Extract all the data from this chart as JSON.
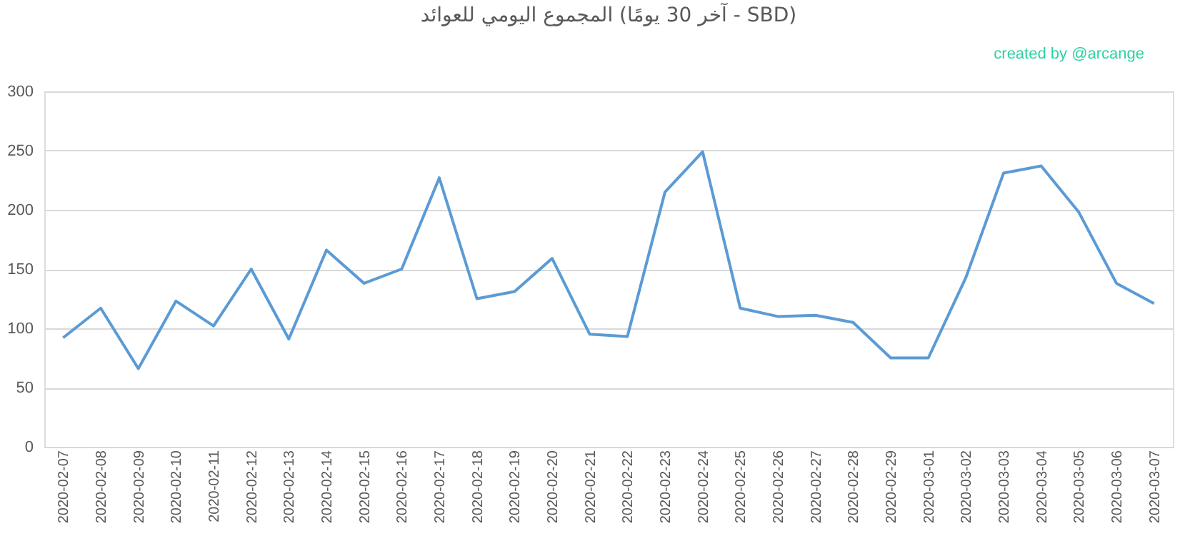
{
  "chart_data": {
    "type": "line",
    "title": "المجموع اليومي للعوائد (آخر 30 يومًا - SBD)",
    "annotations": [
      "created by @arcange"
    ],
    "categories": [
      "2020-02-07",
      "2020-02-08",
      "2020-02-09",
      "2020-02-10",
      "2020-02-11",
      "2020-02-12",
      "2020-02-13",
      "2020-02-14",
      "2020-02-15",
      "2020-02-16",
      "2020-02-17",
      "2020-02-18",
      "2020-02-19",
      "2020-02-20",
      "2020-02-21",
      "2020-02-22",
      "2020-02-23",
      "2020-02-24",
      "2020-02-25",
      "2020-02-26",
      "2020-02-27",
      "2020-02-28",
      "2020-02-29",
      "2020-03-01",
      "2020-03-02",
      "2020-03-03",
      "2020-03-04",
      "2020-03-05",
      "2020-03-06",
      "2020-03-07"
    ],
    "series": [
      {
        "color": "#5b9bd5",
        "values": [
          92,
          117,
          66,
          123,
          102,
          150,
          91,
          166,
          138,
          150,
          227,
          125,
          131,
          159,
          95,
          93,
          215,
          249,
          117,
          110,
          111,
          105,
          75,
          75,
          143,
          231,
          237,
          198,
          138,
          121
        ]
      }
    ],
    "ylim": [
      0,
      300
    ],
    "yticks": [
      0,
      50,
      100,
      150,
      200,
      250,
      300
    ],
    "grid": "y",
    "marker": "none",
    "line_style": "solid"
  }
}
